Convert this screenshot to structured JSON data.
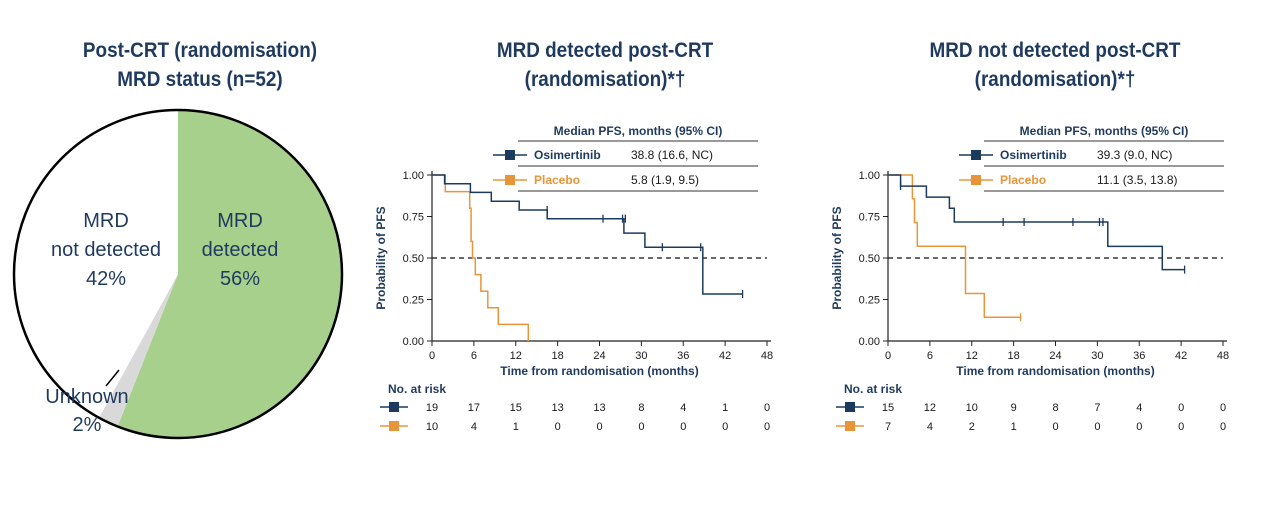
{
  "colors": {
    "navy": "#1c3a5e",
    "orange": "#e8953a",
    "green": "#a8d08d",
    "grey": "#d9d9d9",
    "title": "#1f3a5f",
    "text": "#1a1a1a"
  },
  "chart_data": [
    {
      "type": "pie",
      "title_lines": [
        "Post-CRT (randomisation)",
        "MRD status (n=52)"
      ],
      "slices": [
        {
          "label": "MRD",
          "label2": "detected",
          "pct_label": "56%",
          "value": 56,
          "color": "#a8d08d"
        },
        {
          "label": "Unknown",
          "label2": "",
          "pct_label": "2%",
          "value": 2,
          "color": "#d9d9d9"
        },
        {
          "label": "MRD",
          "label2": "not detected",
          "pct_label": "42%",
          "value": 42,
          "color": "#ffffff"
        }
      ]
    },
    {
      "type": "line",
      "subtype": "kaplan-meier",
      "title_lines": [
        "MRD detected post-CRT",
        "(randomisation)*†"
      ],
      "xlabel": "Time from randomisation (months)",
      "ylabel": "Probability of PFS",
      "xlim": [
        0,
        48
      ],
      "ylim": [
        0,
        1
      ],
      "xticks": [
        "0",
        "6",
        "12",
        "18",
        "24",
        "30",
        "36",
        "42",
        "48"
      ],
      "yticks": [
        "0.00",
        "0.25",
        "0.50",
        "0.75",
        "1.00"
      ],
      "reference_line": 0.5,
      "legend_header": "Median PFS, months (95% CI)",
      "series": [
        {
          "name": "Osimertinib",
          "median": "38.8 (16.6, NC)",
          "color": "#1c3a5e",
          "steps": [
            [
              0,
              1.0
            ],
            [
              1.8,
              1.0
            ],
            [
              1.8,
              0.947
            ],
            [
              5.5,
              0.947
            ],
            [
              5.5,
              0.895
            ],
            [
              8.5,
              0.895
            ],
            [
              8.5,
              0.842
            ],
            [
              12.5,
              0.842
            ],
            [
              12.5,
              0.789
            ],
            [
              16.5,
              0.789
            ],
            [
              16.5,
              0.737
            ],
            [
              27.5,
              0.737
            ],
            [
              27.5,
              0.65
            ],
            [
              30.5,
              0.65
            ],
            [
              30.5,
              0.565
            ],
            [
              38.8,
              0.565
            ],
            [
              38.8,
              0.283
            ],
            [
              44.5,
              0.283
            ]
          ],
          "censors": [
            [
              16.5,
              0.789
            ],
            [
              24.5,
              0.737
            ],
            [
              27.3,
              0.737
            ],
            [
              27.7,
              0.737
            ],
            [
              33,
              0.565
            ],
            [
              38.5,
              0.565
            ],
            [
              44.5,
              0.283
            ]
          ],
          "at_risk": [
            "19",
            "17",
            "15",
            "13",
            "13",
            "8",
            "4",
            "1",
            "0"
          ]
        },
        {
          "name": "Placebo",
          "median": "5.8 (1.9, 9.5)",
          "color": "#e8953a",
          "steps": [
            [
              0,
              1.0
            ],
            [
              1.9,
              1.0
            ],
            [
              1.9,
              0.9
            ],
            [
              5.4,
              0.9
            ],
            [
              5.4,
              0.8
            ],
            [
              5.6,
              0.8
            ],
            [
              5.6,
              0.6
            ],
            [
              5.8,
              0.6
            ],
            [
              5.8,
              0.5
            ],
            [
              6.2,
              0.5
            ],
            [
              6.2,
              0.4
            ],
            [
              7.0,
              0.4
            ],
            [
              7.0,
              0.3
            ],
            [
              8.0,
              0.3
            ],
            [
              8.0,
              0.2
            ],
            [
              9.5,
              0.2
            ],
            [
              9.5,
              0.1
            ],
            [
              13.8,
              0.1
            ],
            [
              13.8,
              0.0
            ]
          ],
          "censors": [],
          "at_risk": [
            "10",
            "4",
            "1",
            "0",
            "0",
            "0",
            "0",
            "0",
            "0"
          ]
        }
      ],
      "at_risk_label": "No. at risk"
    },
    {
      "type": "line",
      "subtype": "kaplan-meier",
      "title_lines": [
        "MRD not detected post-CRT",
        "(randomisation)*†"
      ],
      "xlabel": "Time from randomisation (months)",
      "ylabel": "Probability of PFS",
      "xlim": [
        0,
        48
      ],
      "ylim": [
        0,
        1
      ],
      "xticks": [
        "0",
        "6",
        "12",
        "18",
        "24",
        "30",
        "36",
        "42",
        "48"
      ],
      "yticks": [
        "0.00",
        "0.25",
        "0.50",
        "0.75",
        "1.00"
      ],
      "reference_line": 0.5,
      "legend_header": "Median PFS, months (95% CI)",
      "series": [
        {
          "name": "Osimertinib",
          "median": "39.3 (9.0, NC)",
          "color": "#1c3a5e",
          "steps": [
            [
              0,
              1.0
            ],
            [
              1.8,
              1.0
            ],
            [
              1.8,
              0.933
            ],
            [
              5.5,
              0.933
            ],
            [
              5.5,
              0.867
            ],
            [
              8.8,
              0.867
            ],
            [
              8.8,
              0.8
            ],
            [
              9.5,
              0.8
            ],
            [
              9.5,
              0.717
            ],
            [
              31.5,
              0.717
            ],
            [
              31.5,
              0.57
            ],
            [
              39.3,
              0.57
            ],
            [
              39.3,
              0.43
            ],
            [
              42.5,
              0.43
            ]
          ],
          "censors": [
            [
              1.8,
              0.933
            ],
            [
              16.5,
              0.717
            ],
            [
              19.5,
              0.717
            ],
            [
              26.5,
              0.717
            ],
            [
              30.3,
              0.717
            ],
            [
              30.8,
              0.717
            ],
            [
              42.5,
              0.43
            ]
          ],
          "at_risk": [
            "15",
            "12",
            "10",
            "9",
            "8",
            "7",
            "4",
            "0",
            "0"
          ]
        },
        {
          "name": "Placebo",
          "median": "11.1 (3.5, 13.8)",
          "color": "#e8953a",
          "steps": [
            [
              0,
              1.0
            ],
            [
              3.5,
              1.0
            ],
            [
              3.5,
              0.857
            ],
            [
              3.8,
              0.857
            ],
            [
              3.8,
              0.714
            ],
            [
              4.2,
              0.714
            ],
            [
              4.2,
              0.571
            ],
            [
              11.1,
              0.571
            ],
            [
              11.1,
              0.286
            ],
            [
              13.8,
              0.286
            ],
            [
              13.8,
              0.143
            ],
            [
              19,
              0.143
            ]
          ],
          "censors": [
            [
              19,
              0.143
            ]
          ],
          "at_risk": [
            "7",
            "4",
            "2",
            "1",
            "0",
            "0",
            "0",
            "0",
            "0"
          ]
        }
      ],
      "at_risk_label": "No. at risk"
    }
  ]
}
